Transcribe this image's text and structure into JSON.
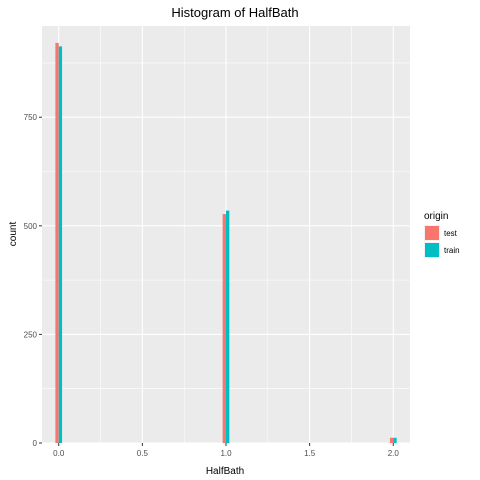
{
  "chart_data": {
    "type": "bar",
    "title": "Histogram of HalfBath",
    "xlabel": "HalfBath",
    "ylabel": "count",
    "xlim": [
      -0.1,
      2.1
    ],
    "ylim": [
      0,
      960
    ],
    "x_ticks": [
      0.0,
      0.5,
      1.0,
      1.5,
      2.0
    ],
    "x_tick_labels": [
      "0.0",
      "0.5",
      "1.0",
      "1.5",
      "2.0"
    ],
    "y_ticks": [
      0,
      250,
      500,
      750
    ],
    "y_tick_labels": [
      "0",
      "250",
      "500",
      "750"
    ],
    "bar_position": "dodge",
    "bar_width": 0.04,
    "categories": [
      0,
      1,
      2
    ],
    "series": [
      {
        "name": "test",
        "color": "#F8766D",
        "values": [
          921,
          527,
          12
        ]
      },
      {
        "name": "train",
        "color": "#00BFC4",
        "values": [
          913,
          535,
          12
        ]
      }
    ],
    "legend": {
      "title": "origin",
      "placement": "right"
    },
    "grid": true,
    "panel_background": "#EBEBEB",
    "grid_color": "#FFFFFF"
  }
}
